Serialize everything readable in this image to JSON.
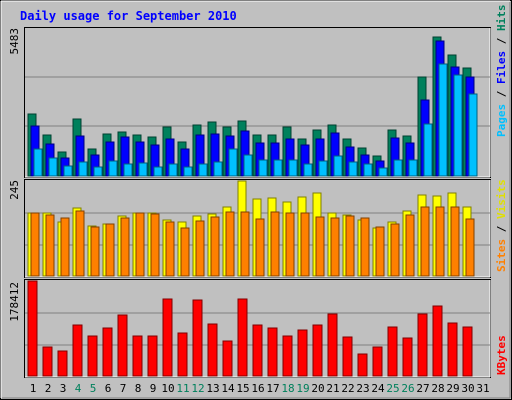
{
  "chart_data": [
    {
      "type": "bar",
      "title": "Daily usage for September 2010",
      "ylabel": "Pages / Files / Hits",
      "y_tick_label": "5483",
      "ylim": [
        0,
        5483
      ],
      "grid": true,
      "categories": [
        "1",
        "2",
        "3",
        "4",
        "5",
        "6",
        "7",
        "8",
        "9",
        "10",
        "11",
        "12",
        "13",
        "14",
        "15",
        "16",
        "17",
        "18",
        "19",
        "20",
        "21",
        "22",
        "23",
        "24",
        "25",
        "26",
        "27",
        "28",
        "29",
        "30",
        "31"
      ],
      "series": [
        {
          "name": "Hits",
          "color": "#00805C",
          "values": [
            2310,
            1530,
            900,
            2130,
            1010,
            1550,
            1650,
            1520,
            1460,
            1840,
            1280,
            1920,
            2030,
            1840,
            2050,
            1520,
            1530,
            1810,
            1380,
            1720,
            1900,
            1370,
            1030,
            750,
            1720,
            1500,
            3710,
            5183,
            4520,
            4020,
            0
          ]
        },
        {
          "name": "Files",
          "color": "#0000FF",
          "values": [
            1850,
            1200,
            680,
            1510,
            800,
            1280,
            1440,
            1260,
            1160,
            1370,
            1000,
            1520,
            1580,
            1490,
            1690,
            1220,
            1220,
            1390,
            1150,
            1390,
            1600,
            1080,
            780,
            560,
            1420,
            1240,
            2820,
            5050,
            4060,
            3680,
            0
          ]
        },
        {
          "name": "Pages",
          "color": "#00C0FF",
          "values": [
            1010,
            680,
            360,
            530,
            330,
            560,
            440,
            480,
            350,
            450,
            320,
            430,
            510,
            1010,
            790,
            580,
            580,
            600,
            460,
            570,
            730,
            510,
            430,
            300,
            580,
            610,
            1930,
            4190,
            3750,
            3060,
            0
          ]
        }
      ],
      "x_label_colors": [
        "#000000",
        "#000000",
        "#000000",
        "#00805C",
        "#00805C",
        "#000000",
        "#000000",
        "#000000",
        "#000000",
        "#000000",
        "#00805C",
        "#00805C",
        "#000000",
        "#000000",
        "#000000",
        "#000000",
        "#000000",
        "#00805C",
        "#00805C",
        "#000000",
        "#000000",
        "#000000",
        "#000000",
        "#000000",
        "#00805C",
        "#00805C",
        "#000000",
        "#000000",
        "#000000",
        "#000000",
        "#000000"
      ]
    },
    {
      "type": "bar",
      "ylabel": "Sites / Visits",
      "y_tick_label": "245",
      "ylim": [
        0,
        245
      ],
      "grid": true,
      "categories": [
        "1",
        "2",
        "3",
        "4",
        "5",
        "6",
        "7",
        "8",
        "9",
        "10",
        "11",
        "12",
        "13",
        "14",
        "15",
        "16",
        "17",
        "18",
        "19",
        "20",
        "21",
        "22",
        "23",
        "24",
        "25",
        "26",
        "27",
        "28",
        "29",
        "30",
        "31"
      ],
      "series": [
        {
          "name": "Visits",
          "color": "#FFFF00",
          "values": [
            163,
            163,
            138,
            175,
            130,
            135,
            154,
            162,
            162,
            145,
            138,
            155,
            160,
            179,
            245,
            199,
            202,
            190,
            205,
            215,
            163,
            158,
            145,
            124,
            140,
            168,
            208,
            207,
            213,
            178,
            0
          ]
        },
        {
          "name": "Sites",
          "color": "#FF8000",
          "values": [
            163,
            158,
            150,
            167,
            127,
            133,
            150,
            162,
            160,
            140,
            125,
            143,
            152,
            164,
            165,
            147,
            164,
            163,
            162,
            152,
            150,
            155,
            150,
            126,
            134,
            157,
            178,
            177,
            178,
            147,
            0
          ]
        }
      ]
    },
    {
      "type": "bar",
      "ylabel": "KBytes",
      "y_tick_label": "178412",
      "ylim": [
        0,
        178412
      ],
      "grid": true,
      "categories": [
        "1",
        "2",
        "3",
        "4",
        "5",
        "6",
        "7",
        "8",
        "9",
        "10",
        "11",
        "12",
        "13",
        "14",
        "15",
        "16",
        "17",
        "18",
        "19",
        "20",
        "21",
        "22",
        "23",
        "24",
        "25",
        "26",
        "27",
        "28",
        "29",
        "30",
        "31"
      ],
      "series": [
        {
          "name": "KBytes",
          "color": "#FF0000",
          "values": [
            178412,
            54000,
            47000,
            96000,
            76000,
            90000,
            114000,
            76000,
            76000,
            144000,
            80000,
            142000,
            98000,
            66000,
            144000,
            96000,
            90000,
            75000,
            86000,
            96000,
            116000,
            73000,
            42000,
            55000,
            92000,
            72000,
            116000,
            132000,
            100000,
            92000,
            0
          ]
        }
      ]
    }
  ]
}
